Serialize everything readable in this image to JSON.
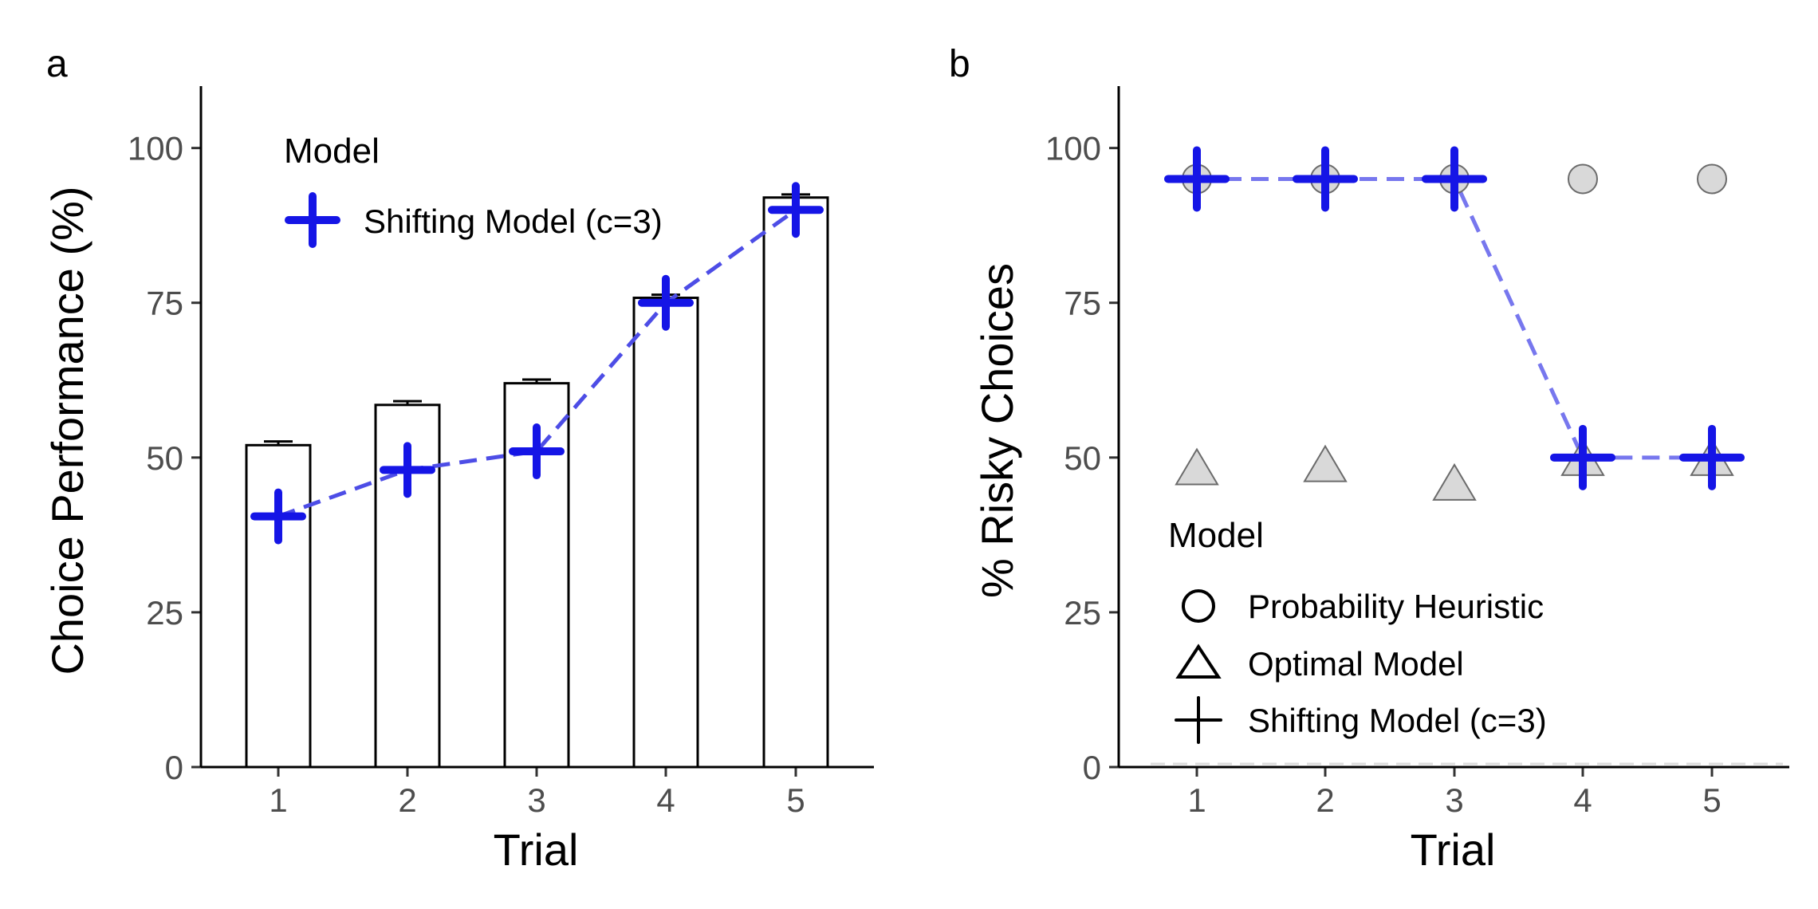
{
  "chart_data": [
    {
      "panel_label": "a",
      "type": "bar",
      "xlabel": "Trial",
      "ylabel": "Choice Performance (%)",
      "categories": [
        "1",
        "2",
        "3",
        "4",
        "5"
      ],
      "yticks": [
        "0",
        "25",
        "50",
        "75",
        "100"
      ],
      "ylim": [
        0,
        110
      ],
      "bars": {
        "values": [
          52,
          58.5,
          62,
          75.8,
          92
        ],
        "error_upper": [
          52.6,
          59.1,
          62.6,
          76.3,
          92.5
        ]
      },
      "series": [
        {
          "name": "Shifting Model (c=3)",
          "marker": "plus",
          "line": "dashed",
          "values": [
            40.5,
            48,
            51,
            75,
            90
          ]
        }
      ],
      "legend": {
        "title": "Model",
        "position": "top-left",
        "entries": [
          "Shifting Model (c=3)"
        ]
      },
      "grid": false,
      "colors": {
        "model": "#1515e6",
        "model_line": "#4d4de6",
        "bar_fill": "#ffffff",
        "bar_edge": "#000000"
      }
    },
    {
      "panel_label": "b",
      "type": "scatter",
      "xlabel": "Trial",
      "ylabel": "% Risky Choices",
      "categories": [
        "1",
        "2",
        "3",
        "4",
        "5"
      ],
      "yticks": [
        "0",
        "25",
        "50",
        "75",
        "100"
      ],
      "ylim": [
        0,
        110
      ],
      "series": [
        {
          "name": "Probability Heuristic",
          "marker": "circle",
          "values": [
            95,
            95,
            95,
            95,
            95
          ]
        },
        {
          "name": "Optimal Model",
          "marker": "triangle",
          "values": [
            48.5,
            49,
            46,
            50,
            50
          ]
        },
        {
          "name": "Shifting Model (c=3)",
          "marker": "plus",
          "line": "dashed",
          "values": [
            95,
            95,
            95,
            50,
            50
          ]
        }
      ],
      "reference_line": {
        "y": 0,
        "style": "dashed"
      },
      "legend": {
        "title": "Model",
        "position": "bottom-left",
        "entries": [
          "Probability Heuristic",
          "Optimal Model",
          "Shifting Model (c=3)"
        ]
      },
      "grid": false,
      "colors": {
        "model": "#1515e6",
        "model_line": "#7777ee",
        "marker_fill": "#d9d9d9",
        "marker_edge": "#6b6b6b",
        "ref_line": "#dddddd"
      }
    }
  ]
}
